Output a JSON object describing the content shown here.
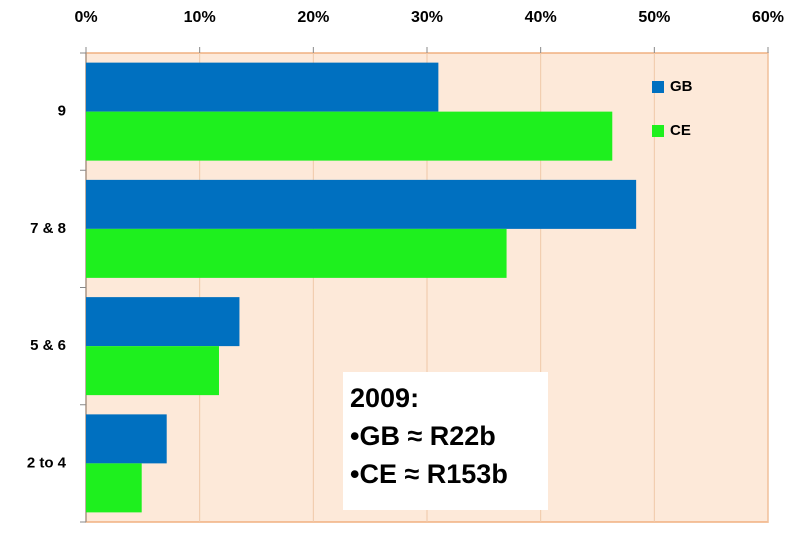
{
  "chart_data": {
    "type": "bar",
    "orientation": "horizontal",
    "categories": [
      "9",
      "7 & 8",
      "5 & 6",
      "2 to 4"
    ],
    "series": [
      {
        "name": "GB",
        "color": "#0070c0",
        "values": [
          31.0,
          48.4,
          13.5,
          7.1
        ]
      },
      {
        "name": "CE",
        "color": "#1ef01e",
        "values": [
          46.3,
          37.0,
          11.7,
          4.9
        ]
      }
    ],
    "xlim": [
      0,
      60
    ],
    "xticks": [
      {
        "value": 0,
        "label": "0%"
      },
      {
        "value": 10,
        "label": "10%"
      },
      {
        "value": 20,
        "label": "20%"
      },
      {
        "value": 30,
        "label": "30%"
      },
      {
        "value": 40,
        "label": "40%"
      },
      {
        "value": 50,
        "label": "50%"
      },
      {
        "value": 60,
        "label": "60%"
      }
    ],
    "grid": true,
    "legend": "top-right",
    "annotation": [
      "2009:",
      "•GB ≈ R22b",
      "•CE ≈ R153b"
    ]
  }
}
